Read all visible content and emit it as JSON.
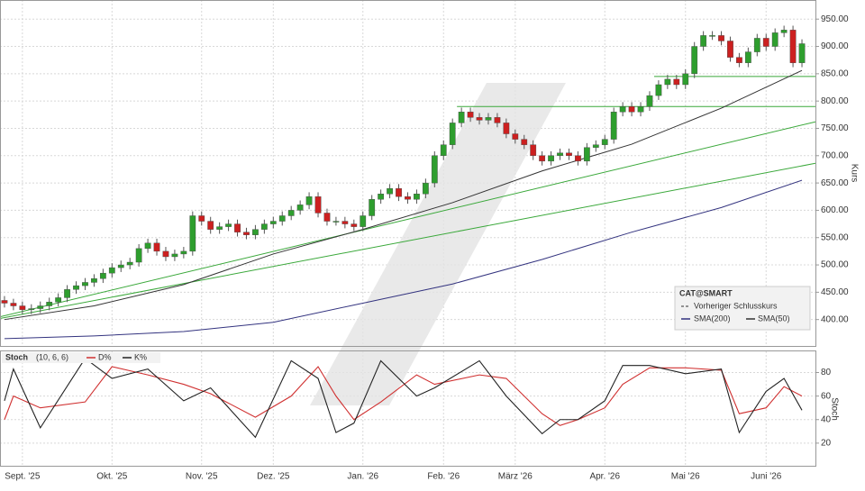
{
  "chart_data": [
    {
      "type": "candlestick",
      "categories": [
        null,
        null,
        "Sept. '25",
        null,
        null,
        null,
        null,
        null,
        null,
        null,
        null,
        null,
        "Okt. '25",
        null,
        null,
        null,
        null,
        null,
        null,
        null,
        null,
        null,
        "Nov. '25",
        null,
        null,
        null,
        null,
        null,
        null,
        null,
        "Dez. '25",
        null,
        null,
        null,
        null,
        null,
        null,
        null,
        null,
        null,
        "Jan. '26",
        null,
        null,
        null,
        null,
        null,
        null,
        null,
        null,
        "Feb. '26",
        null,
        null,
        null,
        null,
        null,
        null,
        null,
        "März '26",
        null,
        null,
        null,
        null,
        null,
        null,
        null,
        null,
        null,
        "Apr. '26",
        null,
        null,
        null,
        null,
        null,
        null,
        null,
        null,
        "Mai '26",
        null,
        null,
        null,
        null,
        null,
        null,
        null,
        null,
        "Juni '26",
        null,
        null,
        null,
        null
      ],
      "open": [
        435,
        430,
        425,
        418,
        420,
        425,
        432,
        440,
        455,
        462,
        468,
        475,
        485,
        495,
        500,
        505,
        530,
        540,
        525,
        515,
        520,
        525,
        590,
        580,
        565,
        570,
        575,
        560,
        555,
        565,
        575,
        580,
        590,
        600,
        610,
        625,
        595,
        580,
        580,
        575,
        570,
        590,
        620,
        630,
        640,
        625,
        620,
        630,
        650,
        700,
        720,
        760,
        780,
        770,
        765,
        770,
        760,
        740,
        730,
        720,
        700,
        690,
        700,
        705,
        700,
        690,
        715,
        720,
        730,
        780,
        790,
        780,
        790,
        810,
        830,
        840,
        830,
        850,
        900,
        920,
        920,
        910,
        880,
        870,
        890,
        915,
        900,
        925,
        930,
        870
      ],
      "high": [
        443,
        438,
        433,
        428,
        433,
        440,
        448,
        463,
        470,
        476,
        483,
        493,
        503,
        508,
        513,
        538,
        548,
        548,
        533,
        528,
        533,
        598,
        598,
        588,
        578,
        583,
        583,
        568,
        573,
        583,
        588,
        598,
        608,
        618,
        633,
        633,
        603,
        588,
        588,
        583,
        598,
        628,
        638,
        648,
        648,
        633,
        638,
        658,
        708,
        728,
        768,
        788,
        788,
        778,
        778,
        778,
        768,
        748,
        738,
        728,
        708,
        708,
        713,
        713,
        708,
        723,
        728,
        738,
        788,
        798,
        798,
        798,
        818,
        838,
        848,
        848,
        858,
        908,
        928,
        928,
        928,
        918,
        888,
        898,
        923,
        923,
        933,
        938,
        938,
        913
      ],
      "low": [
        422,
        417,
        410,
        410,
        412,
        417,
        424,
        432,
        447,
        454,
        460,
        467,
        477,
        487,
        492,
        497,
        522,
        517,
        507,
        507,
        512,
        517,
        572,
        557,
        557,
        562,
        552,
        547,
        547,
        557,
        567,
        572,
        582,
        592,
        602,
        587,
        572,
        572,
        567,
        562,
        562,
        582,
        612,
        622,
        617,
        612,
        612,
        622,
        642,
        692,
        712,
        752,
        762,
        757,
        757,
        752,
        732,
        722,
        712,
        692,
        682,
        682,
        692,
        692,
        682,
        682,
        707,
        712,
        722,
        772,
        772,
        772,
        782,
        802,
        822,
        822,
        822,
        842,
        892,
        912,
        902,
        872,
        862,
        862,
        882,
        892,
        892,
        917,
        862,
        862
      ],
      "close": [
        430,
        425,
        418,
        420,
        425,
        432,
        440,
        455,
        462,
        468,
        475,
        485,
        495,
        500,
        505,
        530,
        540,
        525,
        515,
        520,
        525,
        590,
        580,
        565,
        570,
        575,
        560,
        555,
        565,
        575,
        580,
        590,
        600,
        610,
        625,
        595,
        580,
        580,
        575,
        570,
        590,
        620,
        630,
        640,
        625,
        620,
        630,
        650,
        700,
        720,
        760,
        780,
        770,
        765,
        770,
        760,
        740,
        730,
        720,
        700,
        690,
        700,
        705,
        700,
        690,
        715,
        720,
        730,
        780,
        790,
        780,
        790,
        810,
        830,
        840,
        830,
        850,
        900,
        920,
        920,
        910,
        880,
        870,
        890,
        915,
        900,
        925,
        930,
        870,
        905
      ],
      "up_color": "#2e9e2e",
      "down_color": "#cc2020",
      "series": [
        {
          "name": "SMA(200)",
          "color": "#33337f",
          "x": [
            0,
            10,
            20,
            30,
            40,
            50,
            60,
            70,
            80,
            89
          ],
          "values": [
            365,
            370,
            378,
            395,
            430,
            465,
            510,
            560,
            605,
            655
          ]
        },
        {
          "name": "SMA(50)",
          "color": "#333333",
          "x": [
            0,
            10,
            20,
            30,
            40,
            50,
            60,
            70,
            80,
            89
          ],
          "values": [
            400,
            425,
            464,
            520,
            565,
            614,
            672,
            721,
            787,
            856
          ]
        }
      ],
      "trendlines": [
        {
          "color": "#3aa83a",
          "x": [
            -0.5,
            90.5
          ],
          "values": [
            405,
            762
          ]
        },
        {
          "color": "#3aa83a",
          "x": [
            -0.5,
            90.5
          ],
          "values": [
            402,
            686
          ]
        },
        {
          "color": "#3aa83a",
          "x": [
            72.5,
            90.5
          ],
          "values": [
            845,
            845
          ]
        },
        {
          "color": "#3aa83a",
          "x": [
            50.5,
            90.5
          ],
          "values": [
            790,
            790
          ]
        }
      ],
      "legend_title": "CAT@SMART",
      "legend_prev": "Vorheriger Schlusskurs",
      "y_label": "Kurs",
      "ylim": [
        350,
        985
      ],
      "yticks": [
        {
          "value": 400,
          "label": "400.00"
        },
        {
          "value": 450,
          "label": "450.00"
        },
        {
          "value": 500,
          "label": "500.00"
        },
        {
          "value": 550,
          "label": "550.00"
        },
        {
          "value": 600,
          "label": "600.00"
        },
        {
          "value": 650,
          "label": "650.00"
        },
        {
          "value": 700,
          "label": "700.00"
        },
        {
          "value": 750,
          "label": "750.00"
        },
        {
          "value": 800,
          "label": "800.00"
        },
        {
          "value": 850,
          "label": "850.00"
        },
        {
          "value": 900,
          "label": "900.00"
        },
        {
          "value": 950,
          "label": "950.00"
        }
      ]
    },
    {
      "type": "line",
      "title": "Stoch",
      "subtitle": "(10, 6, 6)",
      "y_label": "Stoch",
      "series": [
        {
          "name": "D%",
          "color": "#d03030",
          "x": [
            0,
            1,
            4,
            9,
            12,
            16,
            20,
            23,
            28,
            32,
            35,
            37,
            39,
            42,
            46,
            48,
            53,
            56,
            60,
            62,
            64,
            67,
            69,
            72,
            76,
            80,
            82,
            85,
            87,
            89
          ],
          "values": [
            40,
            60,
            50,
            55,
            85,
            78,
            70,
            62,
            42,
            60,
            85,
            60,
            40,
            55,
            78,
            70,
            78,
            75,
            45,
            35,
            40,
            50,
            70,
            84,
            84,
            82,
            45,
            50,
            68,
            60
          ]
        },
        {
          "name": "K%",
          "color": "#222222",
          "x": [
            0,
            1,
            4,
            9,
            12,
            16,
            20,
            23,
            28,
            32,
            35,
            37,
            39,
            42,
            46,
            48,
            53,
            56,
            60,
            62,
            64,
            67,
            69,
            72,
            76,
            80,
            82,
            85,
            87,
            89
          ],
          "values": [
            56,
            83,
            33,
            92,
            75,
            83,
            56,
            67,
            25,
            90,
            75,
            29,
            37,
            90,
            60,
            67,
            90,
            60,
            28,
            40,
            40,
            56,
            86,
            86,
            79,
            83,
            29,
            64,
            75,
            48
          ]
        }
      ],
      "ylim": [
        0,
        98
      ],
      "yticks": [
        20,
        40,
        60,
        80
      ]
    }
  ]
}
